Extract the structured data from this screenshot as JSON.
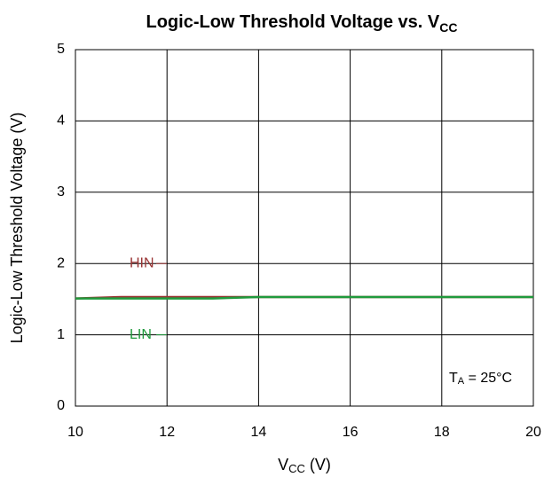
{
  "chart_data": {
    "type": "line",
    "title": "Logic-Low Threshold Voltage vs. V",
    "title_subscript": "CC",
    "x_label": "V",
    "x_label_subscript": "CC",
    "x_label_unit": " (V)",
    "y_label": "Logic-Low Threshold Voltage (V)",
    "annotation": "T",
    "annotation_subscript": "A",
    "annotation_rest": " = 25°C",
    "x": [
      10,
      11,
      12,
      13,
      14,
      15,
      16,
      17,
      18,
      19,
      20
    ],
    "series": [
      {
        "name": "HIN",
        "color": "#993333",
        "values": [
          1.51,
          1.53,
          1.53,
          1.53,
          1.53,
          1.53,
          1.53,
          1.53,
          1.53,
          1.53,
          1.53
        ]
      },
      {
        "name": "LIN",
        "color": "#1f9a3c",
        "values": [
          1.51,
          1.51,
          1.51,
          1.51,
          1.53,
          1.53,
          1.53,
          1.53,
          1.53,
          1.53,
          1.53
        ]
      }
    ],
    "xlim": [
      10,
      20
    ],
    "xticks": [
      10,
      12,
      14,
      16,
      18,
      20
    ],
    "ylim": [
      0,
      5
    ],
    "yticks": [
      0,
      1,
      2,
      3,
      4,
      5
    ],
    "grid": true
  }
}
